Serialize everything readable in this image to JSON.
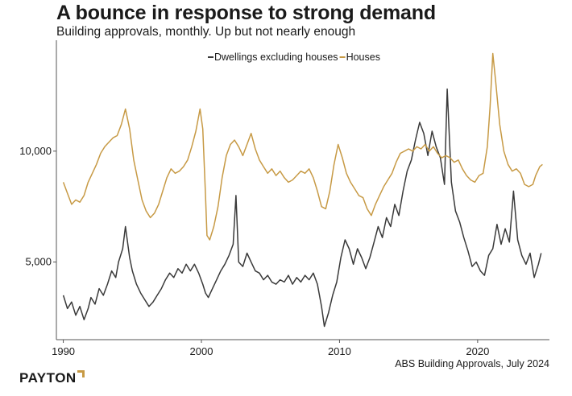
{
  "header": {
    "title": "A bounce in response to strong demand",
    "subtitle": "Building approvals, monthly. Up but not nearly enough"
  },
  "footer": {
    "logo_text": "PAYTON",
    "source": "ABS Building Approvals, July 2024"
  },
  "colors": {
    "dwellings": "#3a3a3a",
    "houses": "#c79a45",
    "axis": "#555555",
    "text": "#1a1a1a",
    "logo_accent": "#c79a45"
  },
  "chart_data": {
    "type": "line",
    "title": "A bounce in response to strong demand",
    "subtitle": "Building approvals, monthly. Up but not nearly enough",
    "xlabel": "",
    "ylabel": "",
    "xlim": [
      1989.5,
      2025.2
    ],
    "ylim": [
      1500,
      15000
    ],
    "x_ticks": [
      1990,
      2000,
      2010,
      2020
    ],
    "x_tick_labels": [
      "1990",
      "2000",
      "2010",
      "2020"
    ],
    "y_ticks": [
      5000,
      10000
    ],
    "y_tick_labels": [
      "5,000",
      "10,000"
    ],
    "grid": false,
    "legend": {
      "position": "top-center"
    },
    "series": [
      {
        "name": "Dwellings excluding houses",
        "color": "#3a3a3a",
        "points": [
          [
            1990.0,
            3500
          ],
          [
            1990.3,
            2900
          ],
          [
            1990.6,
            3200
          ],
          [
            1990.9,
            2600
          ],
          [
            1991.2,
            3000
          ],
          [
            1991.5,
            2400
          ],
          [
            1991.8,
            2900
          ],
          [
            1992.0,
            3400
          ],
          [
            1992.3,
            3100
          ],
          [
            1992.6,
            3800
          ],
          [
            1992.9,
            3500
          ],
          [
            1993.2,
            4000
          ],
          [
            1993.5,
            4600
          ],
          [
            1993.8,
            4300
          ],
          [
            1994.0,
            5000
          ],
          [
            1994.3,
            5600
          ],
          [
            1994.5,
            6600
          ],
          [
            1994.8,
            5200
          ],
          [
            1995.0,
            4600
          ],
          [
            1995.3,
            4000
          ],
          [
            1995.6,
            3600
          ],
          [
            1995.9,
            3300
          ],
          [
            1996.2,
            3000
          ],
          [
            1996.5,
            3200
          ],
          [
            1996.8,
            3500
          ],
          [
            1997.1,
            3800
          ],
          [
            1997.4,
            4200
          ],
          [
            1997.7,
            4500
          ],
          [
            1998.0,
            4300
          ],
          [
            1998.3,
            4700
          ],
          [
            1998.6,
            4500
          ],
          [
            1998.9,
            4900
          ],
          [
            1999.2,
            4600
          ],
          [
            1999.5,
            4900
          ],
          [
            1999.8,
            4500
          ],
          [
            2000.1,
            4000
          ],
          [
            2000.3,
            3600
          ],
          [
            2000.5,
            3400
          ],
          [
            2000.8,
            3800
          ],
          [
            2001.1,
            4200
          ],
          [
            2001.4,
            4600
          ],
          [
            2001.7,
            4900
          ],
          [
            2002.0,
            5300
          ],
          [
            2002.3,
            5800
          ],
          [
            2002.5,
            8000
          ],
          [
            2002.7,
            5000
          ],
          [
            2003.0,
            4800
          ],
          [
            2003.3,
            5400
          ],
          [
            2003.6,
            5000
          ],
          [
            2003.9,
            4600
          ],
          [
            2004.2,
            4500
          ],
          [
            2004.5,
            4200
          ],
          [
            2004.8,
            4400
          ],
          [
            2005.1,
            4100
          ],
          [
            2005.4,
            4000
          ],
          [
            2005.7,
            4200
          ],
          [
            2006.0,
            4100
          ],
          [
            2006.3,
            4400
          ],
          [
            2006.6,
            4000
          ],
          [
            2006.9,
            4300
          ],
          [
            2007.2,
            4100
          ],
          [
            2007.5,
            4400
          ],
          [
            2007.8,
            4200
          ],
          [
            2008.1,
            4500
          ],
          [
            2008.4,
            4000
          ],
          [
            2008.7,
            3000
          ],
          [
            2008.9,
            2100
          ],
          [
            2009.2,
            2700
          ],
          [
            2009.5,
            3500
          ],
          [
            2009.8,
            4100
          ],
          [
            2010.1,
            5200
          ],
          [
            2010.4,
            6000
          ],
          [
            2010.7,
            5600
          ],
          [
            2011.0,
            4900
          ],
          [
            2011.3,
            5600
          ],
          [
            2011.6,
            5200
          ],
          [
            2011.9,
            4700
          ],
          [
            2012.2,
            5200
          ],
          [
            2012.5,
            5900
          ],
          [
            2012.8,
            6600
          ],
          [
            2013.1,
            6100
          ],
          [
            2013.4,
            7000
          ],
          [
            2013.7,
            6600
          ],
          [
            2014.0,
            7600
          ],
          [
            2014.3,
            7100
          ],
          [
            2014.6,
            8200
          ],
          [
            2014.9,
            9100
          ],
          [
            2015.2,
            9600
          ],
          [
            2015.5,
            10500
          ],
          [
            2015.8,
            11300
          ],
          [
            2016.1,
            10800
          ],
          [
            2016.4,
            9800
          ],
          [
            2016.7,
            10900
          ],
          [
            2017.0,
            10200
          ],
          [
            2017.3,
            9700
          ],
          [
            2017.6,
            8500
          ],
          [
            2017.8,
            12800
          ],
          [
            2018.1,
            8600
          ],
          [
            2018.4,
            7300
          ],
          [
            2018.7,
            6800
          ],
          [
            2019.0,
            6100
          ],
          [
            2019.3,
            5500
          ],
          [
            2019.6,
            4800
          ],
          [
            2019.9,
            5000
          ],
          [
            2020.2,
            4600
          ],
          [
            2020.5,
            4400
          ],
          [
            2020.8,
            5300
          ],
          [
            2021.1,
            5600
          ],
          [
            2021.4,
            6700
          ],
          [
            2021.7,
            5800
          ],
          [
            2022.0,
            6500
          ],
          [
            2022.3,
            5900
          ],
          [
            2022.6,
            8200
          ],
          [
            2022.9,
            6000
          ],
          [
            2023.2,
            5300
          ],
          [
            2023.5,
            4900
          ],
          [
            2023.8,
            5400
          ],
          [
            2024.1,
            4300
          ],
          [
            2024.4,
            4900
          ],
          [
            2024.6,
            5400
          ]
        ]
      },
      {
        "name": "Houses",
        "color": "#c79a45",
        "points": [
          [
            1990.0,
            8600
          ],
          [
            1990.3,
            8100
          ],
          [
            1990.6,
            7600
          ],
          [
            1990.9,
            7800
          ],
          [
            1991.2,
            7700
          ],
          [
            1991.5,
            8000
          ],
          [
            1991.8,
            8600
          ],
          [
            1992.1,
            9000
          ],
          [
            1992.4,
            9400
          ],
          [
            1992.7,
            9900
          ],
          [
            1993.0,
            10200
          ],
          [
            1993.3,
            10400
          ],
          [
            1993.6,
            10600
          ],
          [
            1993.9,
            10700
          ],
          [
            1994.2,
            11200
          ],
          [
            1994.5,
            11900
          ],
          [
            1994.8,
            11000
          ],
          [
            1995.1,
            9600
          ],
          [
            1995.4,
            8700
          ],
          [
            1995.7,
            7800
          ],
          [
            1996.0,
            7300
          ],
          [
            1996.3,
            7000
          ],
          [
            1996.6,
            7200
          ],
          [
            1996.9,
            7600
          ],
          [
            1997.2,
            8200
          ],
          [
            1997.5,
            8800
          ],
          [
            1997.8,
            9200
          ],
          [
            1998.1,
            9000
          ],
          [
            1998.4,
            9100
          ],
          [
            1998.7,
            9300
          ],
          [
            1999.0,
            9600
          ],
          [
            1999.3,
            10200
          ],
          [
            1999.6,
            10900
          ],
          [
            1999.9,
            11900
          ],
          [
            2000.1,
            11000
          ],
          [
            2000.3,
            8000
          ],
          [
            2000.4,
            6200
          ],
          [
            2000.6,
            6000
          ],
          [
            2000.9,
            6600
          ],
          [
            2001.2,
            7500
          ],
          [
            2001.5,
            8800
          ],
          [
            2001.8,
            9800
          ],
          [
            2002.1,
            10300
          ],
          [
            2002.4,
            10500
          ],
          [
            2002.7,
            10200
          ],
          [
            2003.0,
            9800
          ],
          [
            2003.3,
            10300
          ],
          [
            2003.6,
            10800
          ],
          [
            2003.9,
            10100
          ],
          [
            2004.2,
            9600
          ],
          [
            2004.5,
            9300
          ],
          [
            2004.8,
            9000
          ],
          [
            2005.1,
            9200
          ],
          [
            2005.4,
            8900
          ],
          [
            2005.7,
            9100
          ],
          [
            2006.0,
            8800
          ],
          [
            2006.3,
            8600
          ],
          [
            2006.6,
            8700
          ],
          [
            2006.9,
            8900
          ],
          [
            2007.2,
            9100
          ],
          [
            2007.5,
            9000
          ],
          [
            2007.8,
            9200
          ],
          [
            2008.1,
            8800
          ],
          [
            2008.4,
            8200
          ],
          [
            2008.7,
            7500
          ],
          [
            2009.0,
            7400
          ],
          [
            2009.3,
            8200
          ],
          [
            2009.6,
            9400
          ],
          [
            2009.9,
            10300
          ],
          [
            2010.2,
            9700
          ],
          [
            2010.5,
            9000
          ],
          [
            2010.8,
            8600
          ],
          [
            2011.1,
            8300
          ],
          [
            2011.4,
            8000
          ],
          [
            2011.7,
            7900
          ],
          [
            2012.0,
            7400
          ],
          [
            2012.3,
            7100
          ],
          [
            2012.6,
            7600
          ],
          [
            2012.9,
            8000
          ],
          [
            2013.2,
            8400
          ],
          [
            2013.5,
            8700
          ],
          [
            2013.8,
            9000
          ],
          [
            2014.1,
            9500
          ],
          [
            2014.4,
            9900
          ],
          [
            2014.7,
            10000
          ],
          [
            2015.0,
            10100
          ],
          [
            2015.3,
            10000
          ],
          [
            2015.6,
            10200
          ],
          [
            2015.9,
            10100
          ],
          [
            2016.2,
            10300
          ],
          [
            2016.5,
            10000
          ],
          [
            2016.8,
            10200
          ],
          [
            2017.1,
            9900
          ],
          [
            2017.4,
            9700
          ],
          [
            2017.7,
            9800
          ],
          [
            2018.0,
            9700
          ],
          [
            2018.3,
            9500
          ],
          [
            2018.6,
            9600
          ],
          [
            2018.9,
            9200
          ],
          [
            2019.2,
            8900
          ],
          [
            2019.5,
            8700
          ],
          [
            2019.8,
            8600
          ],
          [
            2020.1,
            8900
          ],
          [
            2020.4,
            9000
          ],
          [
            2020.7,
            10200
          ],
          [
            2020.9,
            12000
          ],
          [
            2021.1,
            14400
          ],
          [
            2021.3,
            13200
          ],
          [
            2021.6,
            11200
          ],
          [
            2021.9,
            10000
          ],
          [
            2022.2,
            9400
          ],
          [
            2022.5,
            9100
          ],
          [
            2022.8,
            9200
          ],
          [
            2023.1,
            9000
          ],
          [
            2023.4,
            8500
          ],
          [
            2023.7,
            8400
          ],
          [
            2024.0,
            8500
          ],
          [
            2024.2,
            8900
          ],
          [
            2024.5,
            9300
          ],
          [
            2024.7,
            9400
          ]
        ]
      }
    ]
  }
}
